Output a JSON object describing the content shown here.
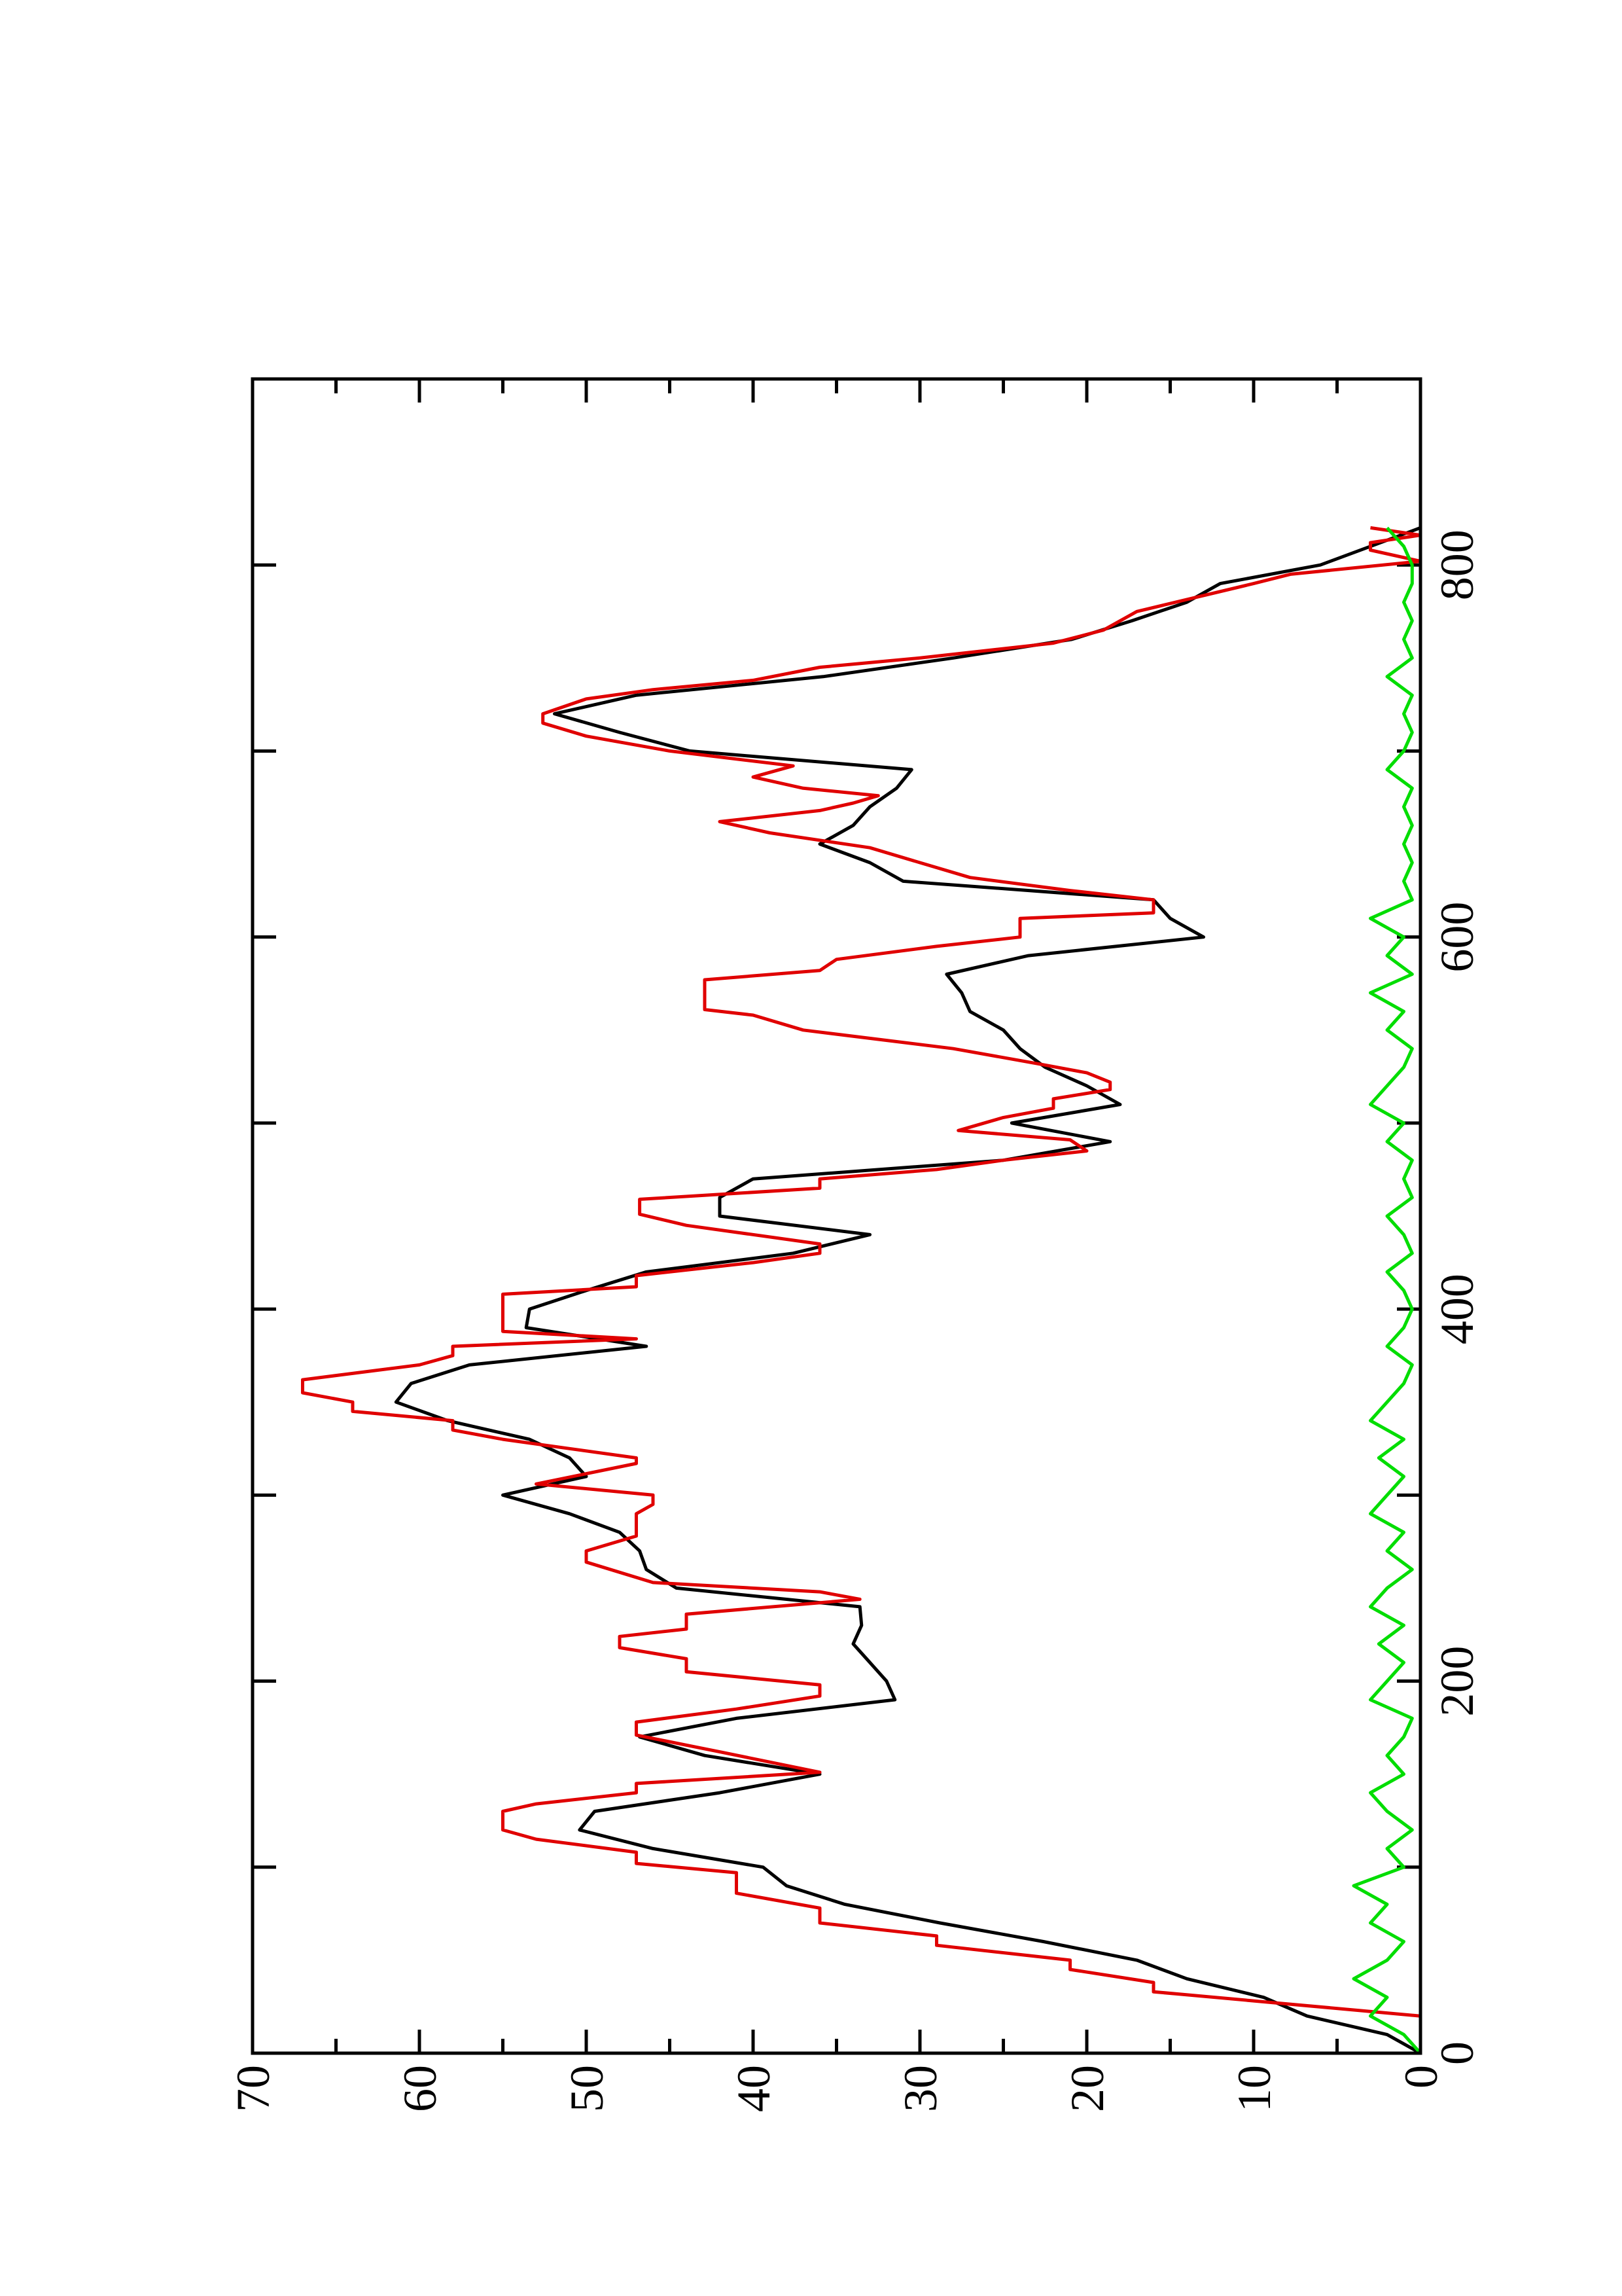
{
  "chart_data": {
    "type": "line",
    "xlim": [
      0,
      900
    ],
    "xticks": [
      0,
      200,
      400,
      600,
      800
    ],
    "x_minor_ticks": [
      100,
      300,
      500,
      700
    ],
    "ylim": [
      0,
      70
    ],
    "yticks": [
      0,
      10,
      20,
      30,
      40,
      50,
      60,
      70
    ],
    "y_minor_ticks": [
      5,
      15,
      25,
      35,
      45,
      55,
      65
    ],
    "rotated": true,
    "series": [
      {
        "color": "#000000",
        "x": [
          0,
          10,
          20,
          30,
          40,
          50,
          60,
          70,
          80,
          90,
          100,
          110,
          120,
          130,
          140,
          150,
          160,
          170,
          180,
          190,
          200,
          210,
          220,
          230,
          240,
          250,
          260,
          270,
          280,
          290,
          300,
          310,
          320,
          330,
          340,
          350,
          360,
          370,
          380,
          390,
          400,
          410,
          420,
          430,
          440,
          450,
          460,
          470,
          480,
          490,
          500,
          510,
          520,
          530,
          540,
          550,
          560,
          570,
          580,
          590,
          600,
          610,
          620,
          630,
          640,
          650,
          660,
          670,
          680,
          690,
          700,
          710,
          720,
          730,
          740,
          750,
          760,
          770,
          780,
          790,
          800,
          810,
          820
        ],
        "values": [
          0,
          2,
          6.8,
          9.4,
          14,
          17,
          22.6,
          28.8,
          34.5,
          38,
          39.4,
          46,
          50.4,
          49.5,
          42,
          36,
          42.9,
          46.8,
          41,
          31.5,
          32,
          33,
          34,
          33.5,
          33.6,
          44.6,
          46.4,
          46.8,
          48,
          51,
          55,
          50,
          51,
          53.4,
          58.3,
          61.4,
          60.5,
          57,
          46.4,
          53.6,
          53.4,
          50,
          46.4,
          37.6,
          33,
          42,
          42,
          40,
          25,
          18.6,
          24.5,
          18,
          20,
          22.5,
          24,
          25,
          27,
          27.5,
          28.4,
          23.5,
          13,
          15,
          16,
          31,
          33,
          36,
          34,
          33,
          31.4,
          30.5,
          43.8,
          48,
          51.9,
          47,
          35.8,
          28,
          20.9,
          17.3,
          14,
          12,
          6,
          3,
          0
        ]
      },
      {
        "color": "#e00000",
        "x": [
          20,
          33,
          38,
          45,
          50,
          58,
          63,
          70,
          78,
          86,
          97,
          102,
          108,
          115,
          120,
          130,
          134,
          140,
          145,
          151,
          162,
          171,
          178,
          185,
          192,
          198,
          205,
          212,
          218,
          224,
          228,
          236,
          244,
          248,
          253,
          264,
          270,
          278,
          285,
          290,
          295,
          300,
          306,
          317,
          320,
          325,
          330,
          335,
          340,
          345,
          350,
          355,
          362,
          370,
          375,
          380,
          384,
          388,
          395,
          408,
          412,
          418,
          425,
          430,
          435,
          445,
          451,
          459,
          465,
          470,
          475,
          480,
          485,
          491,
          496,
          503,
          508,
          513,
          518,
          522,
          527,
          532,
          540,
          550,
          558,
          561,
          577,
          582,
          588,
          595,
          600,
          610,
          613,
          620,
          625,
          632,
          640,
          648,
          656,
          662,
          668,
          672,
          676,
          680,
          686,
          692,
          700,
          708,
          715,
          720,
          728,
          733,
          738,
          745,
          750,
          758,
          765,
          775,
          790,
          795,
          802,
          808,
          812,
          816,
          820
        ],
        "values": [
          0,
          16,
          16,
          21,
          21,
          29,
          29,
          36,
          36,
          41,
          41,
          47,
          47,
          53,
          55,
          55,
          53,
          47,
          47,
          36,
          42,
          47,
          47,
          41,
          36,
          36,
          44,
          44,
          48,
          48,
          44,
          44,
          33.6,
          36,
          46,
          50,
          50,
          47,
          47,
          47,
          46,
          46,
          53,
          47,
          47,
          51,
          55,
          58,
          58,
          64,
          64,
          67,
          67,
          60,
          58,
          58,
          47,
          55,
          55,
          55,
          47,
          47,
          40,
          36,
          36,
          44,
          46.8,
          46.8,
          36,
          36,
          29,
          25,
          20,
          21,
          27.7,
          25,
          22,
          22,
          18.6,
          18.6,
          20,
          23,
          28,
          37,
          40,
          42.9,
          42.9,
          36,
          35,
          29,
          24,
          24,
          16,
          16,
          21,
          27,
          30,
          33,
          39,
          42,
          36,
          34,
          32.5,
          37,
          40,
          37.6,
          45,
          50,
          52.6,
          52.6,
          50,
          46,
          40,
          36,
          30,
          22,
          19,
          17,
          10,
          7.8,
          0,
          3,
          3,
          0,
          3
        ]
      },
      {
        "color": "#00dd00",
        "x": [
          0,
          10,
          20,
          30,
          40,
          50,
          60,
          70,
          80,
          90,
          100,
          110,
          120,
          130,
          140,
          150,
          160,
          170,
          180,
          190,
          200,
          210,
          220,
          230,
          240,
          250,
          260,
          270,
          280,
          290,
          300,
          310,
          320,
          330,
          340,
          350,
          360,
          370,
          380,
          390,
          400,
          410,
          420,
          430,
          440,
          450,
          460,
          470,
          480,
          490,
          500,
          510,
          520,
          530,
          540,
          550,
          560,
          570,
          580,
          590,
          600,
          610,
          620,
          630,
          640,
          650,
          660,
          670,
          680,
          690,
          700,
          710,
          720,
          730,
          740,
          750,
          760,
          770,
          780,
          790,
          800,
          810,
          820
        ],
        "values": [
          0,
          1,
          3,
          2,
          4,
          2,
          1,
          3,
          2,
          4,
          1,
          2,
          0.5,
          2,
          3,
          1,
          2,
          1,
          0.5,
          3,
          2,
          1,
          2.5,
          1,
          3,
          2,
          0.5,
          2,
          1,
          3,
          2,
          1,
          2.5,
          1,
          3,
          2,
          1,
          0.5,
          2,
          1,
          0.5,
          1,
          2,
          0.5,
          1,
          2,
          0.5,
          1,
          0.5,
          2,
          1,
          3,
          2,
          1,
          0.5,
          2,
          1,
          3,
          0.5,
          2,
          1,
          3,
          0.5,
          1,
          0.5,
          1,
          0.5,
          1,
          0.5,
          2,
          1,
          0.5,
          1,
          0.5,
          2,
          0.5,
          1,
          0.5,
          1,
          0.5,
          0.5,
          1,
          2
        ]
      }
    ]
  }
}
